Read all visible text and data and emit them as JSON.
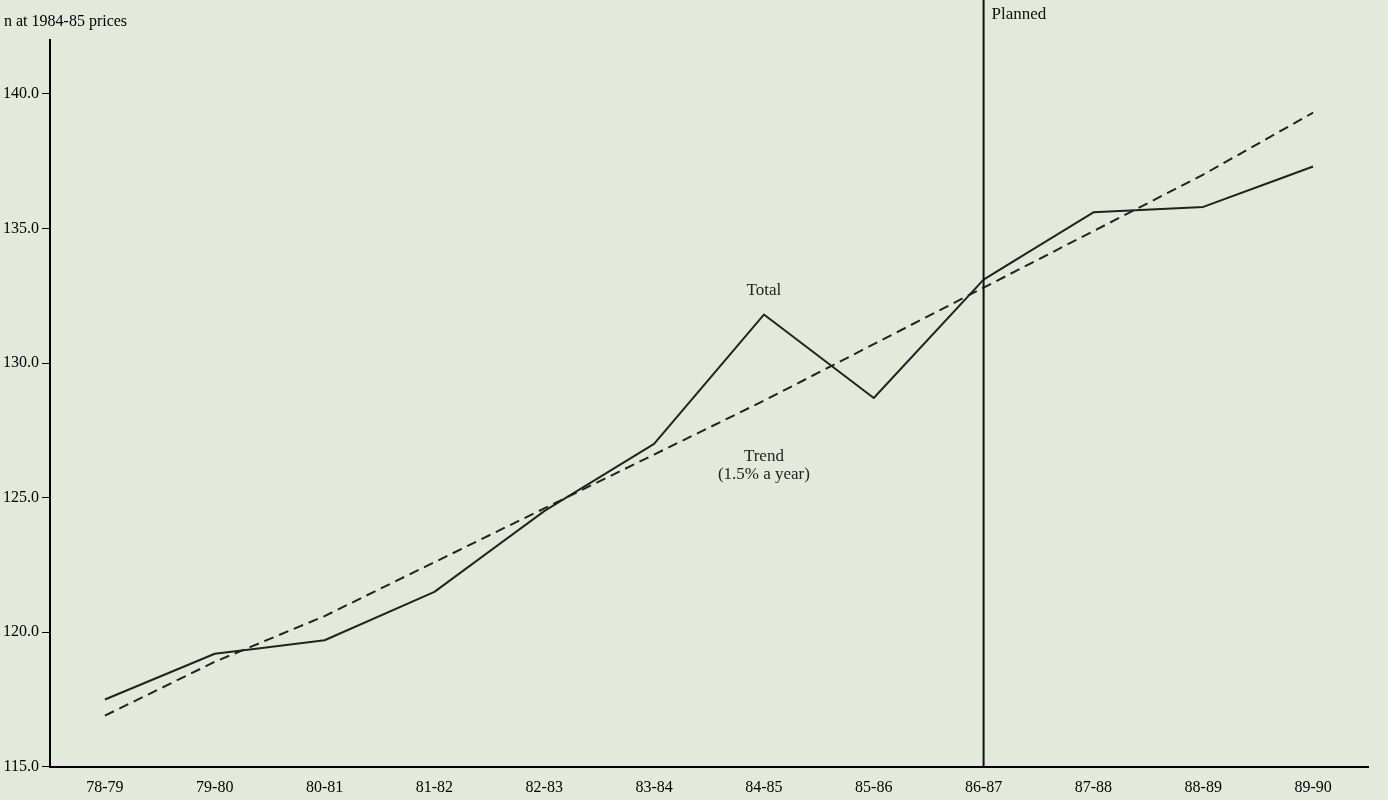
{
  "chart_data": {
    "type": "line",
    "ylabel": "n at 1984-85 prices",
    "categories": [
      "78-79",
      "79-80",
      "80-81",
      "81-82",
      "82-83",
      "83-84",
      "84-85",
      "85-86",
      "86-87",
      "87-88",
      "88-89",
      "89-90"
    ],
    "series": [
      {
        "name": "Total",
        "color": "#222222",
        "line_style": "solid",
        "values": [
          117.5,
          119.2,
          119.7,
          121.5,
          124.5,
          127.0,
          131.8,
          128.7,
          133.1,
          135.6,
          135.8,
          137.3
        ]
      },
      {
        "name": "Trend (1.5% a year)",
        "color": "#222222",
        "line_style": "dashed",
        "values": [
          116.9,
          118.9,
          120.6,
          122.6,
          124.6,
          126.6,
          128.6,
          130.7,
          132.8,
          134.9,
          137.0,
          139.3
        ]
      }
    ],
    "ylim": [
      115,
      142
    ],
    "yticks": [
      {
        "value": 115,
        "label": "115.0"
      },
      {
        "value": 120,
        "label": "120.0"
      },
      {
        "value": 125,
        "label": "125.0"
      },
      {
        "value": 130,
        "label": "130.0"
      },
      {
        "value": 135,
        "label": "135.0"
      },
      {
        "value": 140,
        "label": "140.0"
      }
    ],
    "ref_lines": [
      {
        "axis": "x",
        "value": "86-87",
        "label": "Planned",
        "color": "#111111"
      }
    ],
    "grid": false,
    "legend": false,
    "marker": "none"
  }
}
